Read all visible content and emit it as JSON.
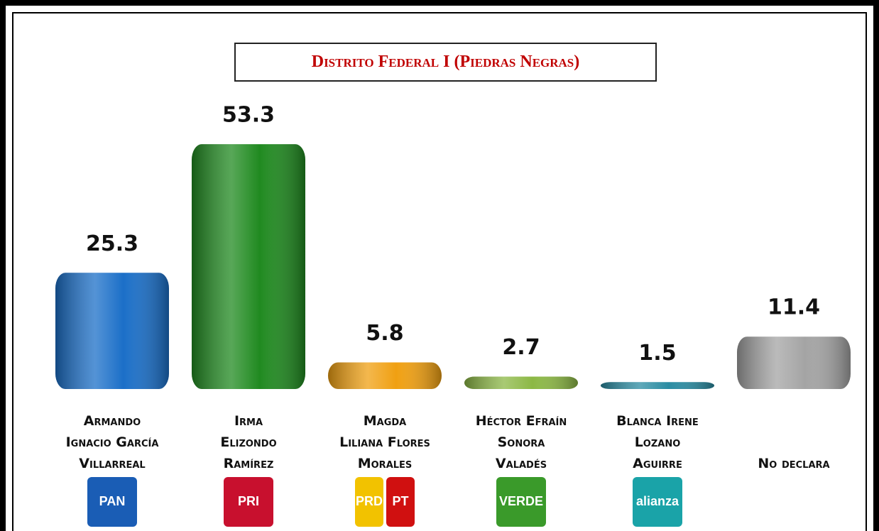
{
  "chart_data": {
    "type": "bar",
    "title": "Distrito Federal I (Piedras Negras)",
    "categories": [
      "Armando\nIgnacio García\nVillarreal",
      "Irma\nElizondo\nRamírez",
      "Magda\nLiliana Flores\nMorales",
      "Héctor Efraín\nSonora\nValadés",
      "Blanca Irene\nLozano\nAguirre",
      "No declara"
    ],
    "values": [
      25.3,
      53.3,
      5.8,
      2.7,
      1.5,
      11.4
    ],
    "colors": [
      "#1b6fc8",
      "#208a20",
      "#f0a012",
      "#8cb845",
      "#2a8ca2",
      "#a4a4a4"
    ],
    "logos": [
      [
        "PAN"
      ],
      [
        "PRI"
      ],
      [
        "PRD",
        "PT"
      ],
      [
        "VERDE"
      ],
      [
        "alianza"
      ],
      null
    ]
  }
}
